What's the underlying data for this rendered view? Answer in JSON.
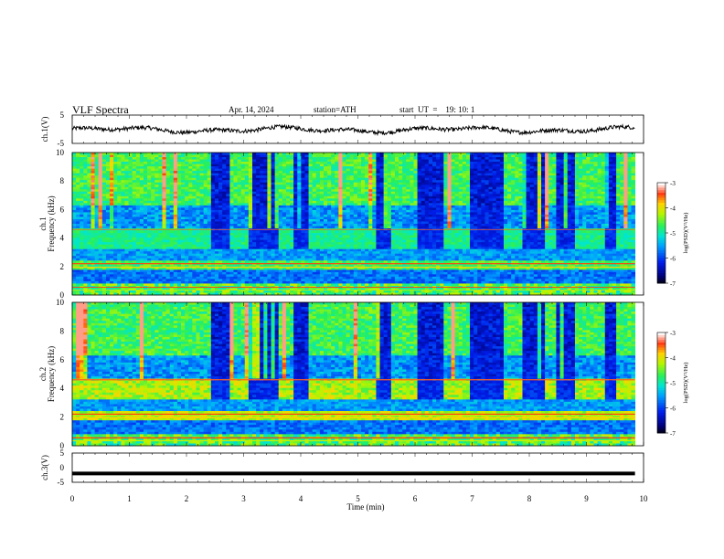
{
  "header": {
    "title": "VLF  Spectra",
    "date": "Apr. 14, 2024",
    "station": "station=ATH",
    "start": "start  UT  =    19: 10: 1"
  },
  "chart_data": [
    {
      "id": "ch1-waveform",
      "type": "line",
      "ylabel": "ch.1(V)",
      "ylim": [
        -5,
        5
      ],
      "yticks": [
        "5",
        "-5"
      ],
      "xlim": [
        0,
        10
      ]
    },
    {
      "id": "ch1-spectrogram",
      "type": "heatmap",
      "ylabel": "ch.1\nFrequency  (kHz)",
      "ylabel_line1": "ch.1",
      "ylabel_line2": "Frequency  (kHz)",
      "ylim": [
        0,
        10
      ],
      "yticks": [
        "0",
        "2",
        "4",
        "6",
        "8",
        "10"
      ],
      "xlim": [
        0,
        10
      ],
      "data_end_min": 9.85,
      "colorbar": {
        "label": "log(PSD)(V²/Hz)",
        "range": [
          -7,
          -3
        ],
        "ticks": [
          "-3",
          "-4",
          "-5",
          "-6",
          "-7"
        ]
      },
      "quiet_blocks_min": [
        [
          2.45,
          2.75
        ],
        [
          3.1,
          3.6
        ],
        [
          3.9,
          4.15
        ],
        [
          5.3,
          5.6
        ],
        [
          6.05,
          6.5
        ],
        [
          6.95,
          7.55
        ],
        [
          7.9,
          8.25
        ],
        [
          8.5,
          8.8
        ],
        [
          9.3,
          9.55
        ]
      ]
    },
    {
      "id": "ch2-spectrogram",
      "type": "heatmap",
      "ylabel_line1": "ch.2",
      "ylabel_line2": "Frequency  (kHz)",
      "ylim": [
        0,
        10
      ],
      "yticks": [
        "0",
        "2",
        "4",
        "6",
        "8",
        "10"
      ],
      "xlim": [
        0,
        10
      ],
      "data_end_min": 9.85,
      "colorbar": {
        "label": "log(PSD)(V²/Hz)",
        "range": [
          -7,
          -3
        ],
        "ticks": [
          "-3",
          "-4",
          "-5",
          "-6",
          "-7"
        ]
      },
      "quiet_blocks_min": [
        [
          2.45,
          2.75
        ],
        [
          3.1,
          3.6
        ],
        [
          3.9,
          4.15
        ],
        [
          5.3,
          5.6
        ],
        [
          6.05,
          6.5
        ],
        [
          6.95,
          7.55
        ],
        [
          7.9,
          8.25
        ],
        [
          8.5,
          8.8
        ],
        [
          9.3,
          9.55
        ]
      ]
    },
    {
      "id": "ch3-waveform",
      "type": "line",
      "ylabel": "ch.3(V)",
      "ylim": [
        -5,
        5
      ],
      "yticks": [
        "5",
        "0",
        "-5"
      ],
      "constant_level_V": -2,
      "xlim": [
        0,
        10
      ]
    }
  ],
  "xaxis": {
    "label": "Time  (min)",
    "ticks": [
      "0",
      "1",
      "2",
      "3",
      "4",
      "5",
      "6",
      "7",
      "8",
      "9",
      "10"
    ]
  }
}
